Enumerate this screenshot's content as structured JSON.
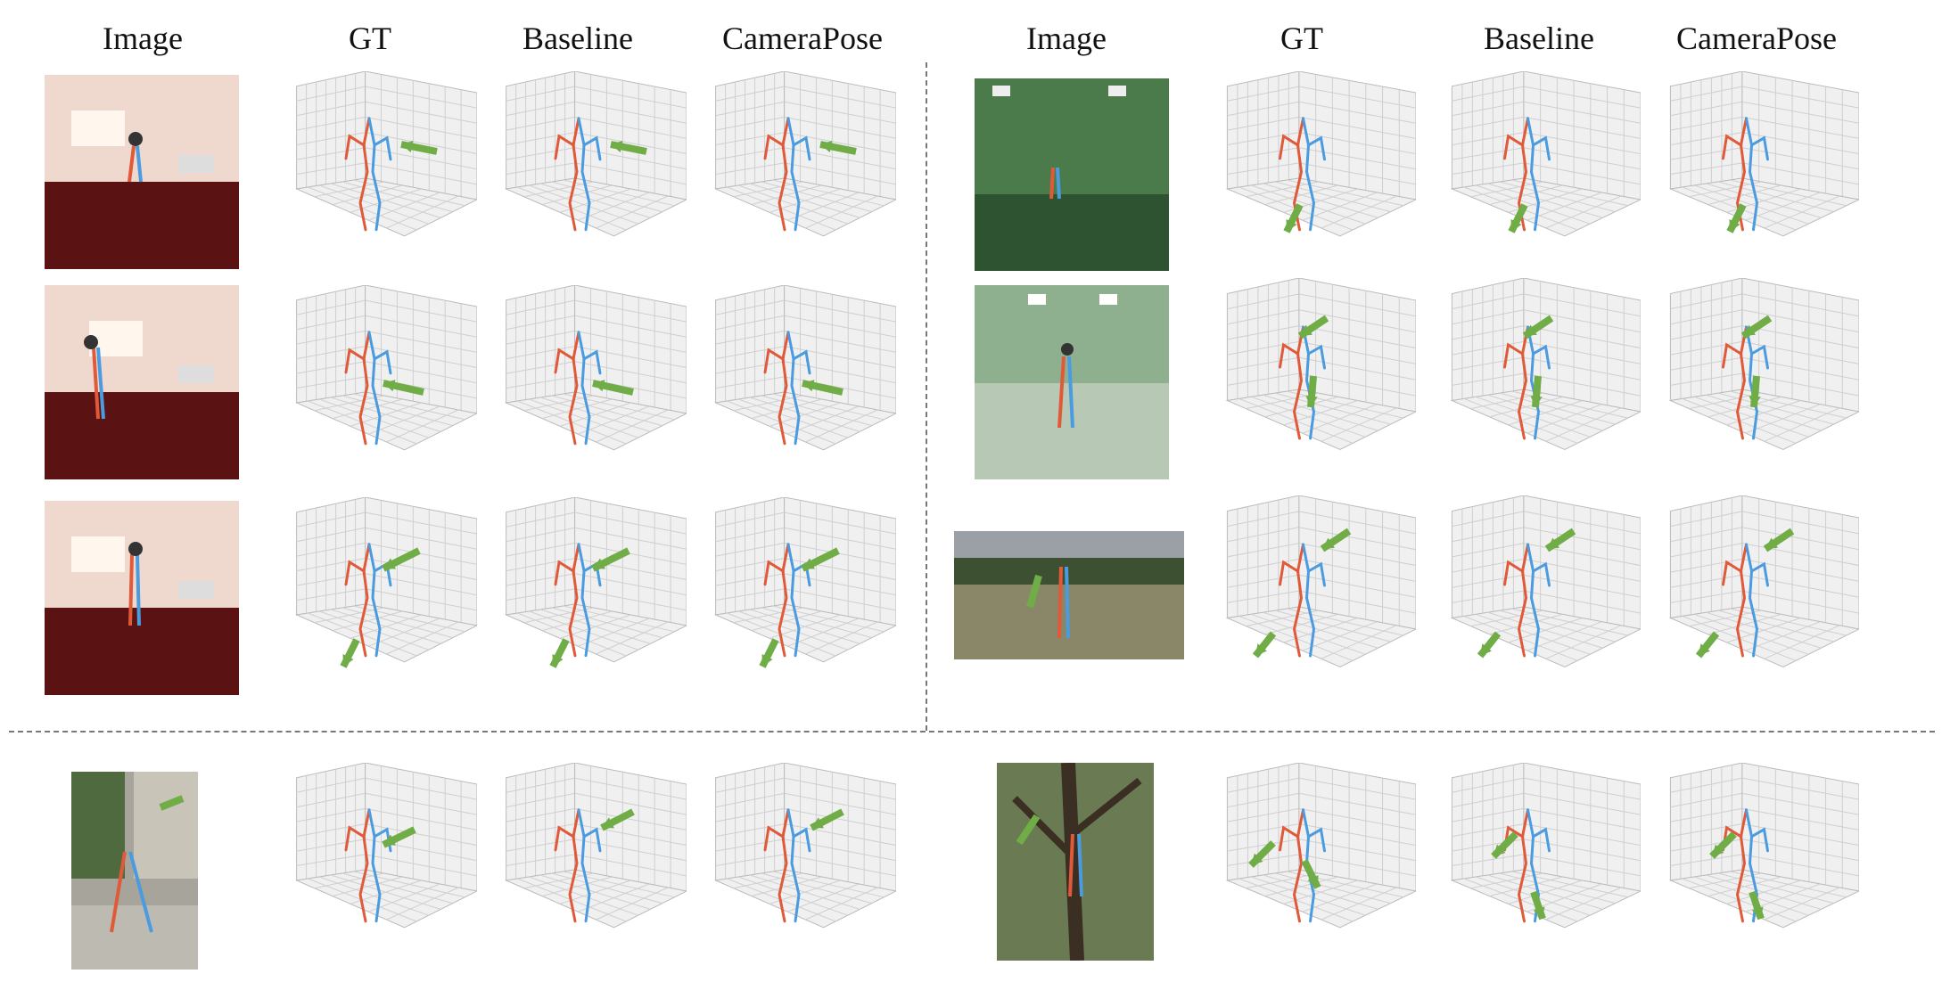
{
  "headers": {
    "left": [
      "Image",
      "GT",
      "Baseline",
      "CameraPose"
    ],
    "right": [
      "Image",
      "GT",
      "Baseline",
      "CameraPose"
    ]
  },
  "colors": {
    "left_limbs": "#e05a3a",
    "right_limbs": "#4a9be0",
    "arrow": "#70ad47",
    "grid_pane": "#f0f0f0",
    "grid_line": "#cfcfcf"
  },
  "scenes": [
    {
      "id": "lab-1",
      "background": "#5a1a1a"
    },
    {
      "id": "lab-2",
      "background": "#5a1a1a"
    },
    {
      "id": "lab-3",
      "background": "#5a1a1a"
    },
    {
      "id": "greenscreen-1",
      "background": "#3f6b3f"
    },
    {
      "id": "greenscreen-2",
      "background": "#6a8a6a"
    },
    {
      "id": "field",
      "background": "#6f7a55"
    },
    {
      "id": "street",
      "background": "#8a8a86"
    },
    {
      "id": "tree",
      "background": "#4e5a3a"
    }
  ]
}
